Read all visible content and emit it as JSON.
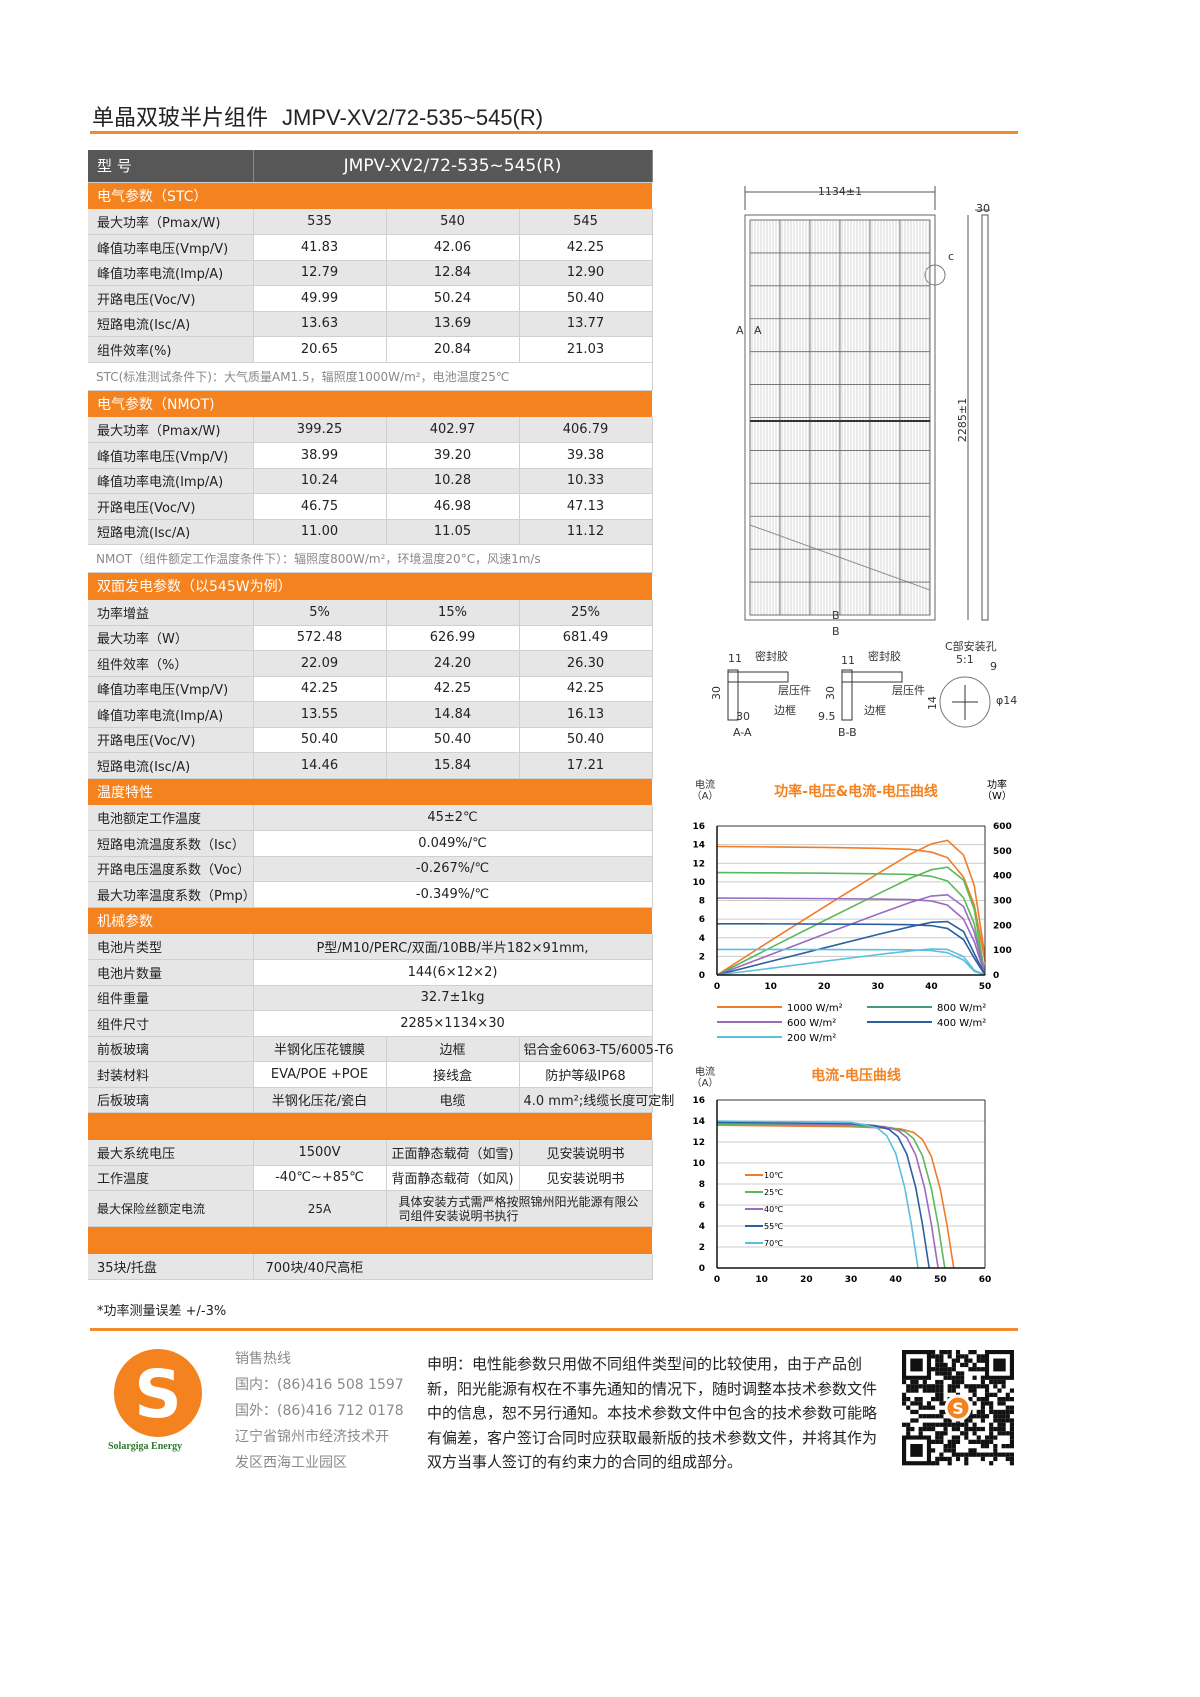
{
  "header": {
    "title_cn": "单晶双玻半片组件",
    "title_model": "JMPV-XV2/72-535~545(R)",
    "accent": "#f4821f"
  },
  "table": {
    "header": [
      "型 号",
      "JMPV-XV2/72-535~545(R)"
    ],
    "rows": [
      {
        "kind": "section",
        "label": "电气参数（STC）"
      },
      {
        "kind": "row",
        "cells": [
          "最大功率（Pmax/W)",
          "535",
          "540",
          "545"
        ]
      },
      {
        "kind": "row",
        "cells": [
          "峰值功率电压(Vmp/V)",
          "41.83",
          "42.06",
          "42.25"
        ]
      },
      {
        "kind": "row",
        "cells": [
          "峰值功率电流(Imp/A)",
          "12.79",
          "12.84",
          "12.90"
        ]
      },
      {
        "kind": "row",
        "cells": [
          "开路电压(Voc/V)",
          "49.99",
          "50.24",
          "50.40"
        ]
      },
      {
        "kind": "row",
        "cells": [
          "短路电流(Isc/A)",
          "13.63",
          "13.69",
          "13.77"
        ]
      },
      {
        "kind": "row",
        "cells": [
          "组件效率(%)",
          "20.65",
          "20.84",
          "21.03"
        ]
      },
      {
        "kind": "note",
        "label": "STC(标准测试条件下)：大气质量AM1.5，辐照度1000W/m²，电池温度25℃"
      },
      {
        "kind": "section",
        "label": "电气参数（NMOT)"
      },
      {
        "kind": "row",
        "cells": [
          "最大功率（Pmax/W)",
          "399.25",
          "402.97",
          "406.79"
        ]
      },
      {
        "kind": "row",
        "cells": [
          "峰值功率电压(Vmp/V)",
          "38.99",
          "39.20",
          "39.38"
        ]
      },
      {
        "kind": "row",
        "cells": [
          "峰值功率电流(Imp/A)",
          "10.24",
          "10.28",
          "10.33"
        ]
      },
      {
        "kind": "row",
        "cells": [
          "开路电压(Voc/V)",
          "46.75",
          "46.98",
          "47.13"
        ]
      },
      {
        "kind": "row",
        "cells": [
          "短路电流(Isc/A)",
          "11.00",
          "11.05",
          "11.12"
        ]
      },
      {
        "kind": "note",
        "label": "NMOT（组件额定工作温度条件下）：辐照度800W/m²，环境温度20°C，风速1m/s"
      },
      {
        "kind": "section",
        "label": "双面发电参数（以545W为例）"
      },
      {
        "kind": "row",
        "cells": [
          "功率增益",
          "5%",
          "15%",
          "25%"
        ]
      },
      {
        "kind": "row",
        "cells": [
          "最大功率（W）",
          "572.48",
          "626.99",
          "681.49"
        ]
      },
      {
        "kind": "row",
        "cells": [
          "组件效率（%）",
          "22.09",
          "24.20",
          "26.30"
        ]
      },
      {
        "kind": "row",
        "cells": [
          "峰值功率电压(Vmp/V)",
          "42.25",
          "42.25",
          "42.25"
        ]
      },
      {
        "kind": "row",
        "cells": [
          "峰值功率电流(Imp/A)",
          "13.55",
          "14.84",
          "16.13"
        ]
      },
      {
        "kind": "row",
        "cells": [
          "开路电压(Voc/V)",
          "50.40",
          "50.40",
          "50.40"
        ]
      },
      {
        "kind": "row",
        "cells": [
          "短路电流(Isc/A)",
          "14.46",
          "15.84",
          "17.21"
        ]
      },
      {
        "kind": "section",
        "label": "温度特性"
      },
      {
        "kind": "full",
        "cells": [
          "电池额定工作温度",
          "45±2℃"
        ]
      },
      {
        "kind": "full",
        "cells": [
          "短路电流温度系数（Isc）",
          "0.049%/℃"
        ]
      },
      {
        "kind": "full",
        "cells": [
          "开路电压温度系数（Voc）",
          "-0.267%/℃"
        ]
      },
      {
        "kind": "full",
        "cells": [
          "最大功率温度系数（Pmp）",
          "-0.349%/℃"
        ]
      },
      {
        "kind": "section",
        "label": "机械参数"
      },
      {
        "kind": "full",
        "cells": [
          "电池片类型",
          "P型/M10/PERC/双面/10BB/半片182×91mm,"
        ]
      },
      {
        "kind": "full",
        "cells": [
          "电池片数量",
          "144(6×12×2)"
        ]
      },
      {
        "kind": "full",
        "cells": [
          "组件重量",
          "32.7±1kg"
        ]
      },
      {
        "kind": "full",
        "cells": [
          "组件尺寸",
          "2285×1134×30"
        ]
      },
      {
        "kind": "split",
        "cells": [
          "前板玻璃",
          "半钢化压花镀膜",
          "边框",
          "铝合金6063-T5/6005-T6"
        ]
      },
      {
        "kind": "split",
        "cells": [
          "封装材料",
          "EVA/POE +POE",
          "接线盒",
          "防护等级IP68"
        ]
      },
      {
        "kind": "split",
        "cells": [
          "后板玻璃",
          "半钢化压花/瓷白",
          "电缆",
          "4.0 mm²;线缆长度可定制"
        ]
      },
      {
        "kind": "section",
        "label": ""
      },
      {
        "kind": "split",
        "cells": [
          "最大系统电压",
          "1500V",
          "正面静态载荷（如雪)",
          "见安装说明书"
        ]
      },
      {
        "kind": "split",
        "cells": [
          "工作温度",
          "-40℃~+85℃",
          "背面静态载荷（如风)",
          "见安装说明书"
        ]
      },
      {
        "kind": "splitwide",
        "cells": [
          "最大保险丝额定电流",
          "25A",
          "具体安装方式需严格按照锦州阳光能源有限公司组件安装说明书执行"
        ]
      },
      {
        "kind": "section",
        "label": ""
      },
      {
        "kind": "pack",
        "cells": [
          "35块/托盘",
          "700块/40尺高柜"
        ]
      }
    ],
    "footnote": "*功率测量误差 +/-3%"
  },
  "drawing": {
    "width_dim": "1134±1",
    "frame_dim": "30",
    "height_dim": "2285±1",
    "section_a": "A",
    "section_b": "B",
    "detail_c": "c",
    "aa": {
      "d1": "11",
      "seal": "密封胶",
      "h": "30",
      "laminate": "层压件",
      "frame": "边框",
      "d2": "30",
      "label": "A-A"
    },
    "bb": {
      "d1": "11",
      "seal": "密封胶",
      "h": "30",
      "laminate": "层压件",
      "frame": "边框",
      "d2": "9.5",
      "label": "B-B"
    },
    "cc": {
      "title": "C部安装孔",
      "scale": "5:1",
      "d1": "9",
      "d2": "14",
      "hole": "φ14"
    }
  },
  "chart_data": [
    {
      "type": "line",
      "title": "功率-电压&电流-电压曲线",
      "ylabel": "电流\n（A）",
      "y2label": "功率\n（W）",
      "xlim": [
        0,
        50
      ],
      "ylim": [
        0,
        16
      ],
      "y2lim": [
        0,
        600
      ],
      "xticks": [
        0,
        10,
        20,
        30,
        40,
        50
      ],
      "yticks": [
        0,
        2,
        4,
        6,
        8,
        10,
        12,
        14,
        16
      ],
      "y2ticks": [
        0,
        100,
        200,
        300,
        400,
        500,
        600
      ],
      "grid": true,
      "legend": "bottom",
      "x": [
        0,
        10,
        20,
        30,
        36,
        40,
        43,
        46,
        48,
        50
      ],
      "series": [
        {
          "name": "1000 W/m²",
          "color": "#f07c2a",
          "current": [
            13.8,
            13.75,
            13.7,
            13.6,
            13.5,
            13.2,
            12.6,
            10.5,
            7.5,
            1.5
          ],
          "power": [
            0,
            138,
            274,
            408,
            486,
            528,
            542,
            483,
            360,
            75
          ]
        },
        {
          "name": "800 W/m²",
          "color": "#5cb85c",
          "legend_color": "#4a9a7a",
          "current": [
            11.0,
            10.97,
            10.93,
            10.87,
            10.8,
            10.6,
            10.1,
            8.3,
            5.5,
            0
          ],
          "power": [
            0,
            110,
            219,
            326,
            389,
            424,
            434,
            382,
            264,
            0
          ]
        },
        {
          "name": "600 W/m²",
          "color": "#9b6bbf",
          "current": [
            8.26,
            8.24,
            8.2,
            8.15,
            8.1,
            7.95,
            7.5,
            6.0,
            3.6,
            0
          ],
          "power": [
            0,
            82,
            164,
            245,
            292,
            318,
            323,
            276,
            173,
            0
          ]
        },
        {
          "name": "400 W/m²",
          "color": "#2c5fa0",
          "current": [
            5.5,
            5.49,
            5.47,
            5.44,
            5.4,
            5.3,
            5.0,
            3.8,
            1.8,
            0
          ],
          "power": [
            0,
            55,
            109,
            163,
            194,
            212,
            215,
            175,
            86,
            0
          ]
        },
        {
          "name": "200 W/m²",
          "color": "#5bc0de",
          "current": [
            2.75,
            2.74,
            2.73,
            2.72,
            2.7,
            2.62,
            2.4,
            1.6,
            0.4,
            0
          ],
          "power": [
            0,
            27,
            55,
            82,
            97,
            105,
            103,
            74,
            19,
            0
          ]
        }
      ]
    },
    {
      "type": "line",
      "title": "电流-电压曲线",
      "ylabel": "电流\n（A）",
      "xlim": [
        0,
        60
      ],
      "ylim": [
        0,
        16
      ],
      "xticks": [
        0,
        10,
        20,
        30,
        40,
        50,
        60
      ],
      "yticks": [
        0,
        2,
        4,
        6,
        8,
        10,
        12,
        14,
        16
      ],
      "grid": true,
      "legend": "left",
      "series": [
        {
          "name": "10℃",
          "color": "#f07c2a",
          "x": [
            0,
            30,
            41,
            44,
            46,
            48,
            50,
            51.5,
            53
          ],
          "y": [
            13.6,
            13.46,
            13.26,
            12.92,
            12.24,
            10.61,
            7.48,
            4.08,
            0
          ]
        },
        {
          "name": "25℃",
          "color": "#5cb85c",
          "x": [
            0,
            30,
            39,
            42,
            44,
            46,
            48,
            49.5,
            51
          ],
          "y": [
            13.7,
            13.56,
            13.36,
            13.02,
            12.33,
            10.69,
            7.54,
            4.11,
            0
          ]
        },
        {
          "name": "40℃",
          "color": "#9b6bbf",
          "x": [
            0,
            30,
            37.5,
            40.5,
            42.5,
            44.5,
            46.5,
            48,
            49.5
          ],
          "y": [
            13.8,
            13.66,
            13.46,
            13.11,
            12.42,
            10.76,
            7.59,
            4.14,
            0
          ]
        },
        {
          "name": "55℃",
          "color": "#2c5fa0",
          "x": [
            0,
            30,
            35.5,
            38.5,
            40.5,
            42.5,
            44.5,
            46,
            47.5
          ],
          "y": [
            13.9,
            13.76,
            13.55,
            13.2,
            12.51,
            10.84,
            7.65,
            4.17,
            0
          ]
        },
        {
          "name": "70℃",
          "color": "#5bc0de",
          "x": [
            0,
            30,
            33,
            36,
            38,
            40,
            42,
            43.5,
            45
          ],
          "y": [
            14.0,
            13.86,
            13.65,
            13.3,
            12.6,
            10.92,
            7.7,
            4.2,
            0
          ]
        }
      ]
    }
  ],
  "footer": {
    "brand": "Solargiga Energy",
    "logo_letter": "S",
    "hotline_title": "销售热线",
    "domestic": "国内：(86)416 508 1597",
    "foreign": "国外：(86)416 712 0178",
    "address_1": "辽宁省锦州市经济技术开",
    "address_2": "发区西海工业园区",
    "declaration": "申明：电性能参数只用做不同组件类型间的比较使用，由于产品创新，阳光能源有权在不事先通知的情况下，随时调整本技术参数文件中的信息，恕不另行通知。本技术参数文件中包含的技术参数可能略有偏差，客户签订合同时应获取最新版的技术参数文件，并将其作为双方当事人签订的有约束力的合同的组成部分。"
  }
}
